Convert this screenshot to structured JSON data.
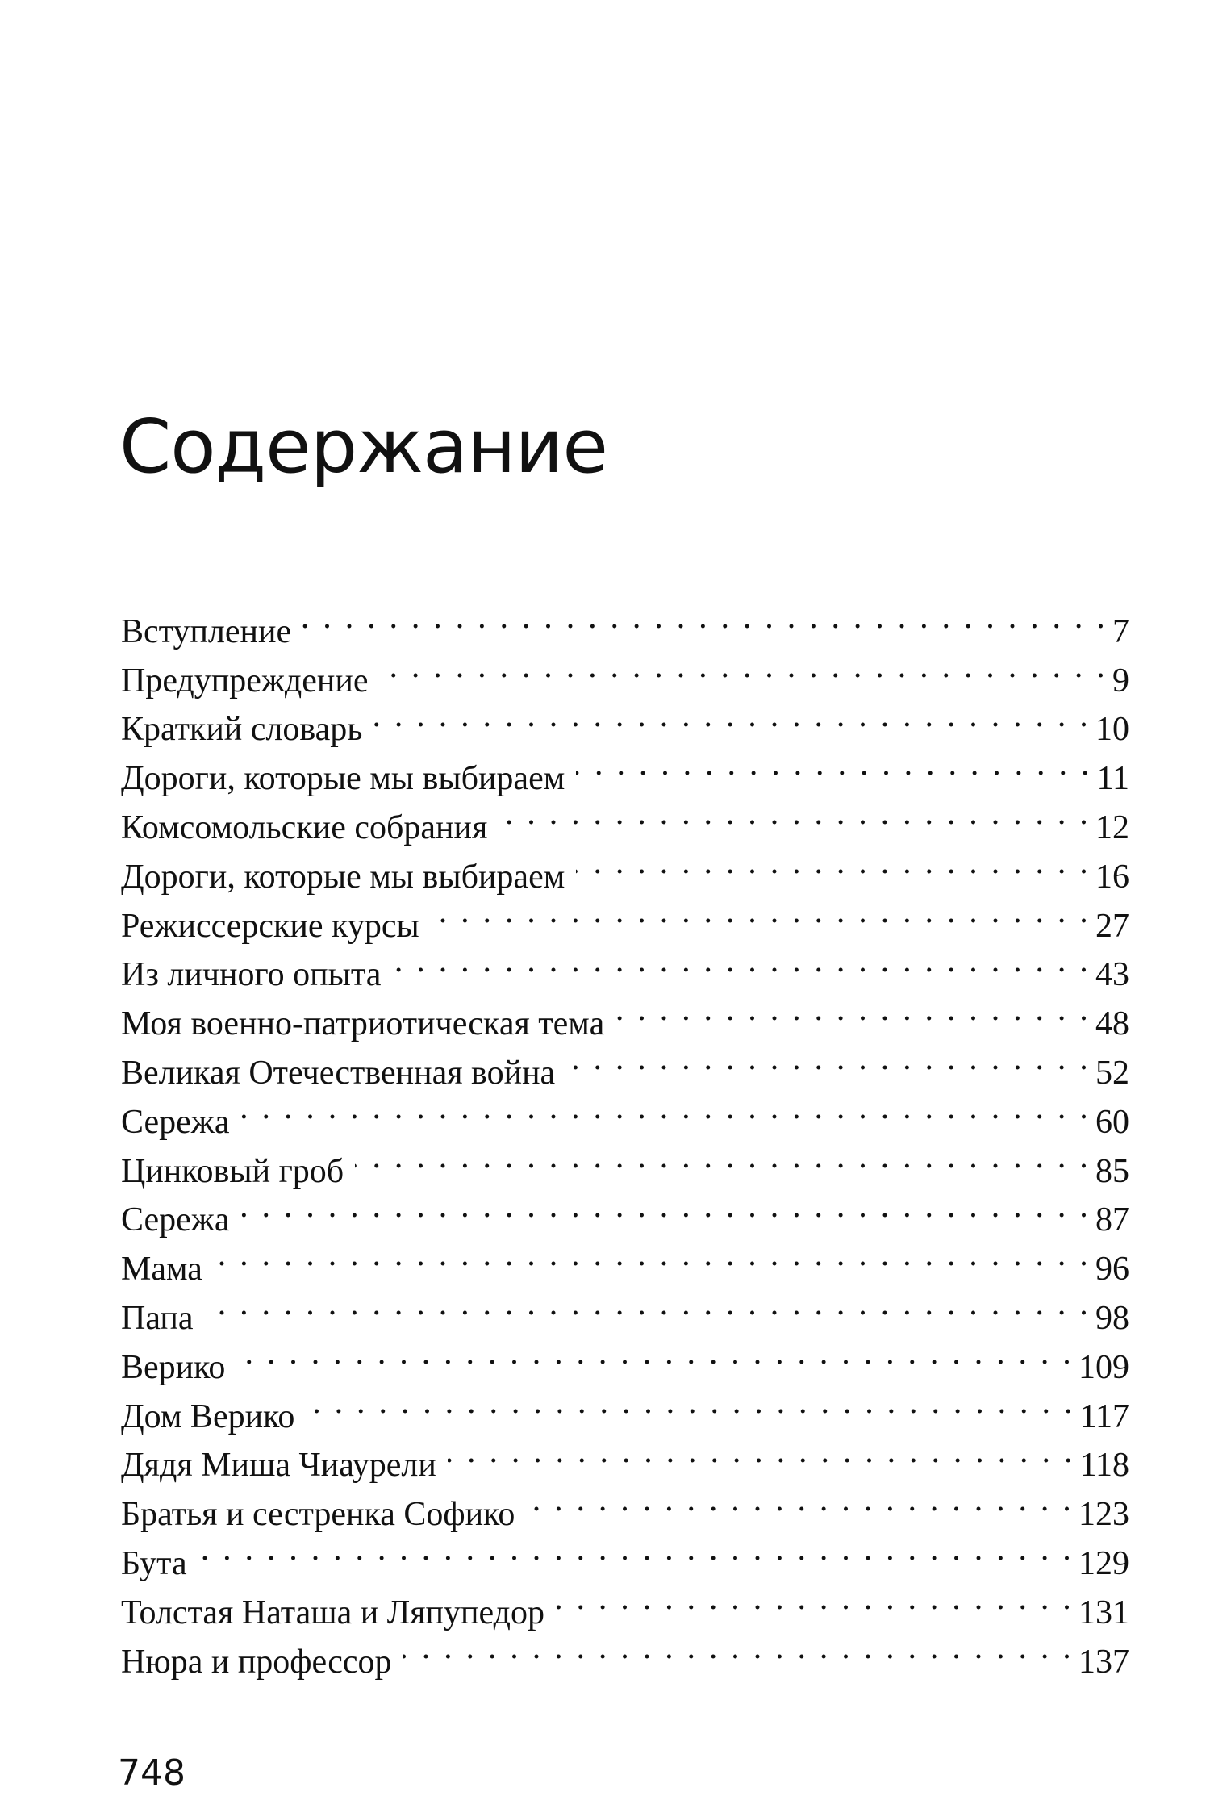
{
  "title": "Содержание",
  "entries": [
    {
      "label": "Вступление",
      "page": "7"
    },
    {
      "label": "Предупреждение",
      "page": "9"
    },
    {
      "label": "Краткий словарь",
      "page": "10"
    },
    {
      "label": "Дороги, которые мы выбираем",
      "page": "11"
    },
    {
      "label": "Комсомольские собрания",
      "page": "12"
    },
    {
      "label": "Дороги, которые мы выбираем",
      "page": "16"
    },
    {
      "label": "Режиссерские курсы",
      "page": "27"
    },
    {
      "label": "Из личного опыта",
      "page": "43"
    },
    {
      "label": "Моя военно-патриотическая тема",
      "page": "48"
    },
    {
      "label": "Великая Отечественная война",
      "page": "52"
    },
    {
      "label": "Сережа",
      "page": "60"
    },
    {
      "label": "Цинковый гроб",
      "page": "85"
    },
    {
      "label": "Сережа",
      "page": "87"
    },
    {
      "label": "Мама",
      "page": "96"
    },
    {
      "label": "Папа",
      "page": "98"
    },
    {
      "label": "Верико",
      "page": "109"
    },
    {
      "label": "Дом Верико",
      "page": "117"
    },
    {
      "label": "Дядя Миша Чиаурели",
      "page": "118"
    },
    {
      "label": "Братья и сестренка Софико",
      "page": "123"
    },
    {
      "label": "Бута",
      "page": "129"
    },
    {
      "label": "Толстая Наташа и Ляпупедор",
      "page": "131"
    },
    {
      "label": "Нюра и профессор",
      "page": "137"
    }
  ],
  "page_number": "748"
}
